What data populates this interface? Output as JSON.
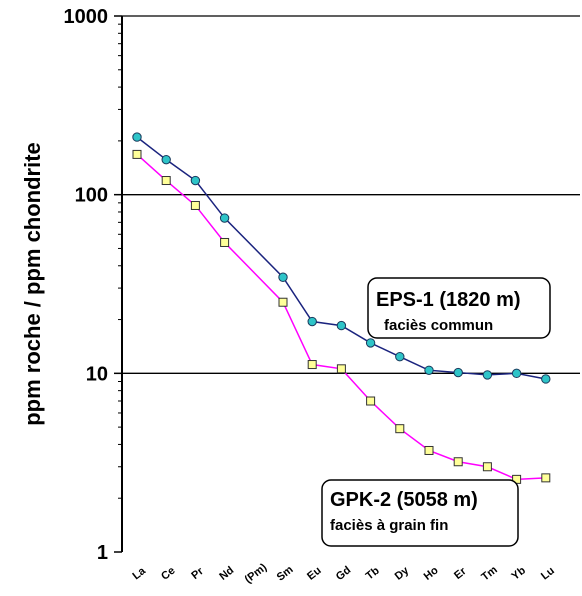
{
  "chart_data": {
    "type": "line",
    "yscale": "log",
    "ylim": [
      1,
      1000
    ],
    "ylabel": "ppm roche / ppm chondrite",
    "xlabel": "",
    "y_ticks": [
      "1",
      "10",
      "100",
      "1000"
    ],
    "grid": "horizontal lines at 10, 100, 1000",
    "categories": [
      "La",
      "Ce",
      "Pr",
      "Nd",
      "(Pm)",
      "Sm",
      "Eu",
      "Gd",
      "Tb",
      "Dy",
      "Ho",
      "Er",
      "Tm",
      "Yb",
      "Lu"
    ],
    "series": [
      {
        "name": "EPS-1 (1820 m)",
        "subtitle": "faciès commun",
        "color": "#1a237e",
        "marker": "circle",
        "marker_color": "#2ec4c8",
        "values": [
          210,
          157,
          120,
          74,
          null,
          34.5,
          19.5,
          18.5,
          14.8,
          12.4,
          10.4,
          10.1,
          9.8,
          10.0,
          9.3
        ]
      },
      {
        "name": "GPK-2 (5058 m)",
        "subtitle": "faciès à grain fin",
        "color": "#ff00ff",
        "marker": "square",
        "marker_color": "#ffff99",
        "values": [
          168,
          120,
          87,
          54,
          null,
          25,
          11.2,
          10.6,
          7.0,
          4.9,
          3.7,
          3.2,
          3.0,
          2.55,
          2.6
        ]
      }
    ]
  }
}
